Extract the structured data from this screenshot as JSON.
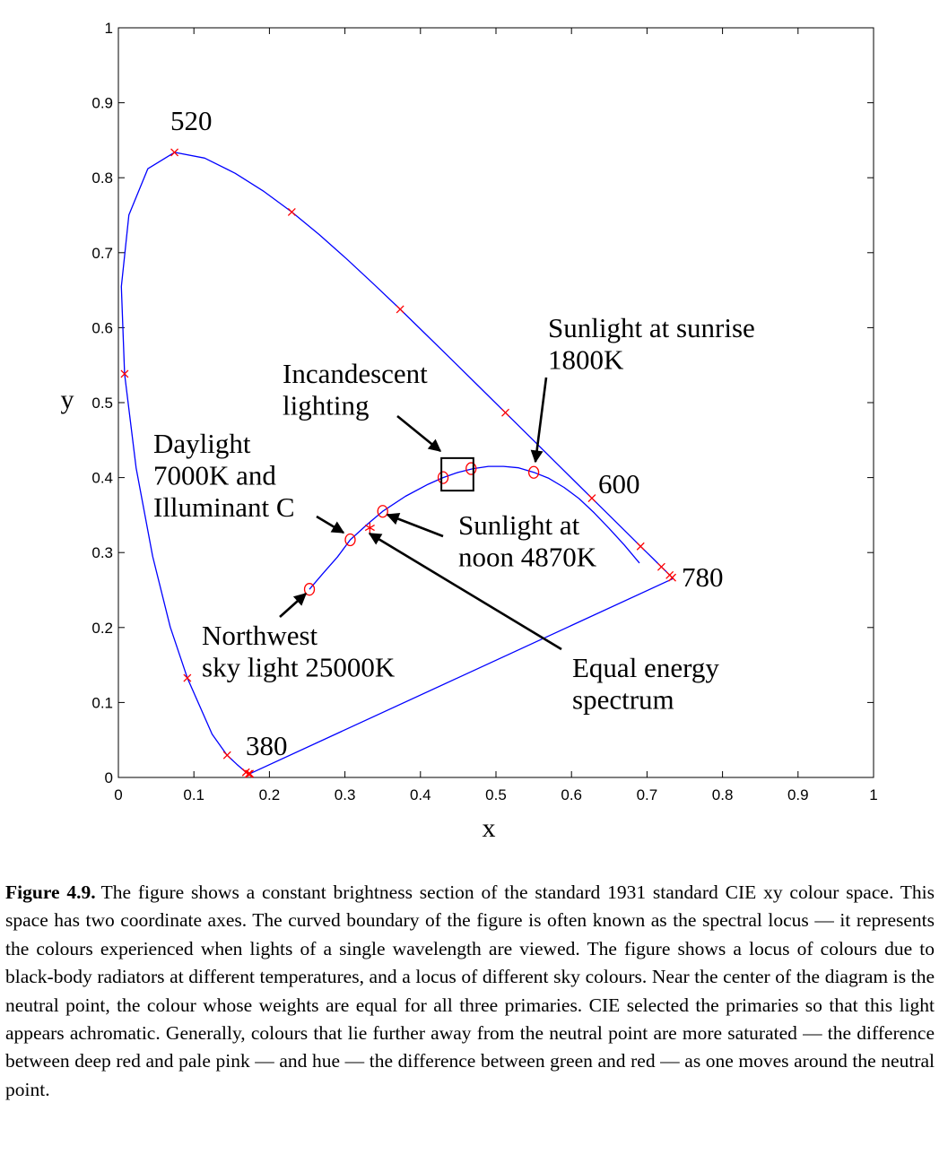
{
  "chart_data": {
    "type": "scatter",
    "xlabel": "x",
    "ylabel": "y",
    "xlim": [
      0,
      1
    ],
    "ylim": [
      0,
      1
    ],
    "xticks": [
      "0",
      "0.1",
      "0.2",
      "0.3",
      "0.4",
      "0.5",
      "0.6",
      "0.7",
      "0.8",
      "0.9",
      "1"
    ],
    "yticks": [
      "0",
      "0.1",
      "0.2",
      "0.3",
      "0.4",
      "0.5",
      "0.6",
      "0.7",
      "0.8",
      "0.9",
      "1"
    ],
    "grid": false,
    "colors": {
      "locus": "#0000ff",
      "marker": "#ff0000",
      "text": "#000000"
    },
    "spectral_locus": {
      "x": [
        0.1741,
        0.1738,
        0.1733,
        0.1726,
        0.1714,
        0.1689,
        0.1644,
        0.1566,
        0.144,
        0.1241,
        0.0913,
        0.0687,
        0.0454,
        0.0235,
        0.0082,
        0.0039,
        0.0139,
        0.0389,
        0.0743,
        0.1142,
        0.1547,
        0.1929,
        0.2296,
        0.2658,
        0.3016,
        0.3373,
        0.3731,
        0.4087,
        0.4441,
        0.4788,
        0.5125,
        0.5448,
        0.5752,
        0.6029,
        0.627,
        0.6482,
        0.6658,
        0.6801,
        0.6915,
        0.7006,
        0.7079,
        0.714,
        0.719,
        0.723,
        0.726,
        0.7283,
        0.73,
        0.7311,
        0.732,
        0.7327,
        0.7334,
        0.734,
        0.7344,
        0.7346,
        0.7347
      ],
      "y": [
        0.005,
        0.0049,
        0.0048,
        0.0048,
        0.0051,
        0.0069,
        0.0109,
        0.0177,
        0.0297,
        0.0578,
        0.1327,
        0.2007,
        0.295,
        0.4127,
        0.5384,
        0.6548,
        0.7502,
        0.812,
        0.8338,
        0.8262,
        0.8059,
        0.7816,
        0.7543,
        0.7243,
        0.6923,
        0.6589,
        0.6245,
        0.5896,
        0.5547,
        0.5202,
        0.4866,
        0.4544,
        0.4242,
        0.3965,
        0.3725,
        0.3514,
        0.334,
        0.3197,
        0.3083,
        0.2993,
        0.292,
        0.2859,
        0.2809,
        0.277,
        0.274,
        0.2717,
        0.27,
        0.2689,
        0.268,
        0.2673,
        0.2666,
        0.266,
        0.2656,
        0.2654,
        0.2653
      ]
    },
    "spectral_markers": {
      "x": [
        0.1741,
        0.1726,
        0.1689,
        0.144,
        0.0913,
        0.0082,
        0.0743,
        0.2296,
        0.3731,
        0.5125,
        0.627,
        0.6915,
        0.719,
        0.73,
        0.7334
      ],
      "y": [
        0.005,
        0.0048,
        0.0069,
        0.0297,
        0.1327,
        0.5384,
        0.8338,
        0.7543,
        0.6245,
        0.4866,
        0.3725,
        0.3083,
        0.2809,
        0.27,
        0.2666
      ]
    },
    "blackbody_locus": {
      "x": [
        0.253,
        0.27,
        0.29,
        0.307,
        0.33,
        0.35,
        0.38,
        0.41,
        0.43,
        0.45,
        0.47,
        0.49,
        0.51,
        0.53,
        0.55,
        0.57,
        0.59,
        0.61,
        0.63,
        0.65,
        0.67,
        0.69
      ],
      "y": [
        0.251,
        0.271,
        0.294,
        0.317,
        0.338,
        0.355,
        0.375,
        0.391,
        0.4,
        0.407,
        0.412,
        0.415,
        0.415,
        0.413,
        0.407,
        0.399,
        0.387,
        0.372,
        0.353,
        0.332,
        0.31,
        0.286
      ]
    },
    "circles": {
      "x": [
        0.253,
        0.307,
        0.35,
        0.43,
        0.467,
        0.55
      ],
      "y": [
        0.251,
        0.317,
        0.355,
        0.4,
        0.412,
        0.407
      ]
    },
    "equal_energy_point": {
      "x": 0.333,
      "y": 0.333
    },
    "incandescent_box": {
      "x": [
        0.4277,
        0.4701
      ],
      "y": [
        0.3826,
        0.426
      ]
    },
    "wavelength_labels": [
      "520",
      "600",
      "780",
      "380"
    ],
    "annotations": [
      {
        "key": "sunrise",
        "lines": [
          "Sunlight at sunrise",
          "1800K"
        ]
      },
      {
        "key": "incandescent",
        "lines": [
          "Incandescent",
          "lighting"
        ]
      },
      {
        "key": "daylight",
        "lines": [
          "Daylight",
          "7000K and",
          "Illuminant C"
        ]
      },
      {
        "key": "noon",
        "lines": [
          "Sunlight at",
          "noon 4870K"
        ]
      },
      {
        "key": "northwest",
        "lines": [
          "Northwest",
          "sky light 25000K"
        ]
      },
      {
        "key": "equal",
        "lines": [
          "Equal energy",
          "spectrum"
        ]
      }
    ]
  },
  "caption": {
    "label": "Figure 4.9.",
    "text": "The figure shows a constant brightness section of the standard 1931 standard CIE xy colour space. This space has two coordinate axes. The curved boundary of the figure is often known as the spectral locus — it represents the colours experienced when lights of a single wavelength are viewed. The figure shows a locus of colours due to black-body radiators at different temperatures, and a locus of different sky colours. Near the center of the diagram is the neutral point, the colour whose weights are equal for all three primaries. CIE selected the primaries so that this light appears achromatic. Generally, colours that lie further away from the neutral point are more saturated — the difference between deep red and pale pink — and hue — the difference between green and red — as one moves around the neutral point."
  }
}
